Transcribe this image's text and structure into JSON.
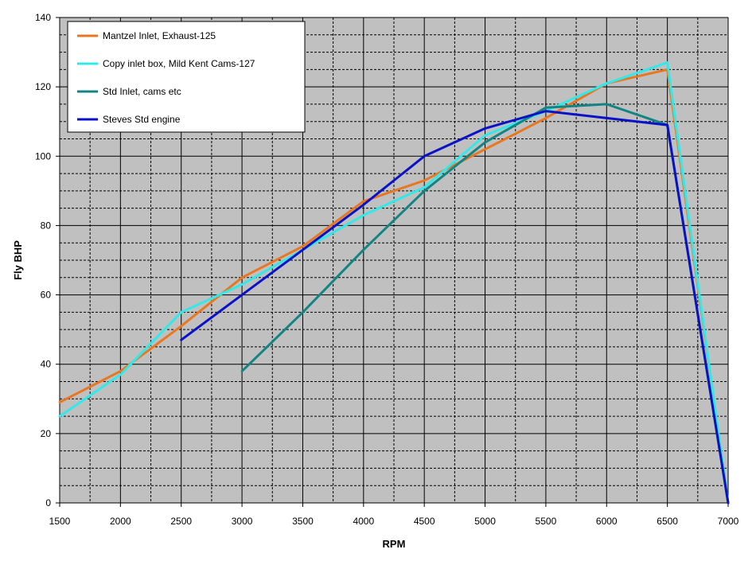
{
  "chart_data": {
    "type": "line",
    "title": "",
    "xlabel": "RPM",
    "ylabel": "Fly BHP",
    "xlim": [
      1500,
      7000
    ],
    "ylim": [
      0,
      140
    ],
    "x_ticks": [
      1500,
      2000,
      2500,
      3000,
      3500,
      4000,
      4500,
      5000,
      5500,
      6000,
      6500,
      7000
    ],
    "y_ticks": [
      0,
      20,
      40,
      60,
      80,
      100,
      120,
      140
    ],
    "grid": true,
    "plot_background": "#c0c0c0",
    "legend_position": "top-left",
    "series": [
      {
        "name": "Mantzel Inlet, Exhaust-125",
        "color": "#e87722",
        "points": [
          [
            1500,
            29
          ],
          [
            2000,
            38
          ],
          [
            2500,
            51
          ],
          [
            3000,
            65
          ],
          [
            3500,
            74
          ],
          [
            4000,
            87
          ],
          [
            4500,
            93
          ],
          [
            5000,
            102
          ],
          [
            5500,
            111
          ],
          [
            6000,
            121
          ],
          [
            6500,
            125
          ],
          [
            7000,
            0
          ]
        ]
      },
      {
        "name": "Copy inlet box, Mild Kent Cams-127",
        "color": "#33e8e8",
        "points": [
          [
            1500,
            25
          ],
          [
            2000,
            37
          ],
          [
            2500,
            55
          ],
          [
            3000,
            63
          ],
          [
            3500,
            73
          ],
          [
            4000,
            83
          ],
          [
            4500,
            91
          ],
          [
            5000,
            106
          ],
          [
            5500,
            113
          ],
          [
            6000,
            121
          ],
          [
            6500,
            127
          ],
          [
            7000,
            0
          ]
        ]
      },
      {
        "name": "Std Inlet, cams etc",
        "color": "#138484",
        "points": [
          [
            3000,
            38
          ],
          [
            3500,
            55
          ],
          [
            4000,
            73
          ],
          [
            4500,
            90
          ],
          [
            5000,
            104
          ],
          [
            5500,
            114
          ],
          [
            6000,
            115
          ],
          [
            6500,
            109
          ],
          [
            7000,
            0
          ]
        ]
      },
      {
        "name": "Steves Std engine",
        "color": "#0a12c8",
        "points": [
          [
            2500,
            47
          ],
          [
            3000,
            60
          ],
          [
            3500,
            73
          ],
          [
            4000,
            86
          ],
          [
            4500,
            100
          ],
          [
            5000,
            108
          ],
          [
            5500,
            113
          ],
          [
            6000,
            111
          ],
          [
            6500,
            109
          ],
          [
            7000,
            0
          ]
        ]
      }
    ]
  }
}
